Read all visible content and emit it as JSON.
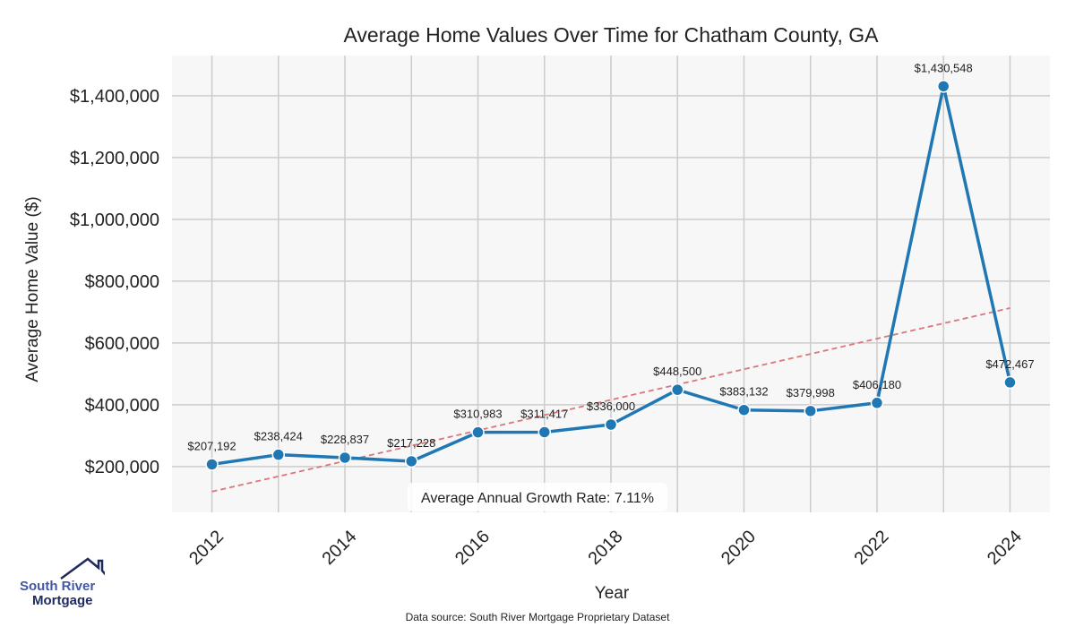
{
  "chart_data": {
    "type": "line",
    "title": "Average Home Values Over Time for Chatham County, GA",
    "xlabel": "Year",
    "ylabel": "Average Home Value ($)",
    "x": [
      2012,
      2013,
      2014,
      2015,
      2016,
      2017,
      2018,
      2019,
      2020,
      2021,
      2022,
      2023,
      2024
    ],
    "values": [
      207192,
      238424,
      228837,
      217228,
      310983,
      311417,
      336000,
      448500,
      383132,
      379998,
      406180,
      1430548,
      472467
    ],
    "labels": [
      "$207,192",
      "$238,424",
      "$228,837",
      "$217,228",
      "$310,983",
      "$311,417",
      "$336,000",
      "$448,500",
      "$383,132",
      "$379,998",
      "$406,180",
      "$1,430,548",
      "$472,467"
    ],
    "xticks": [
      2012,
      2014,
      2016,
      2018,
      2020,
      2022,
      2024
    ],
    "xtick_labels": [
      "2012",
      "2014",
      "2016",
      "2018",
      "2020",
      "2022",
      "2024"
    ],
    "yticks": [
      200000,
      400000,
      600000,
      800000,
      1000000,
      1200000,
      1400000
    ],
    "ytick_labels": [
      "$200,000",
      "$400,000",
      "$600,000",
      "$800,000",
      "$1,000,000",
      "$1,200,000",
      "$1,400,000"
    ],
    "xlim": [
      2011.4,
      2024.6
    ],
    "ylim": [
      52000,
      1530000
    ],
    "trendline": {
      "x": [
        2012,
        2024
      ],
      "y": [
        119000,
        713000
      ]
    },
    "annotation": "Average Annual Growth Rate: 7.11%",
    "grid": true,
    "colors": {
      "line": "#1f77b4",
      "trend": "#d9777a",
      "plot_bg": "#f7f7f7",
      "grid": "#cccccc"
    }
  },
  "source": "Data source: South River Mortgage Proprietary Dataset",
  "logo": {
    "line1": "South River",
    "line2": "Mortgage"
  }
}
